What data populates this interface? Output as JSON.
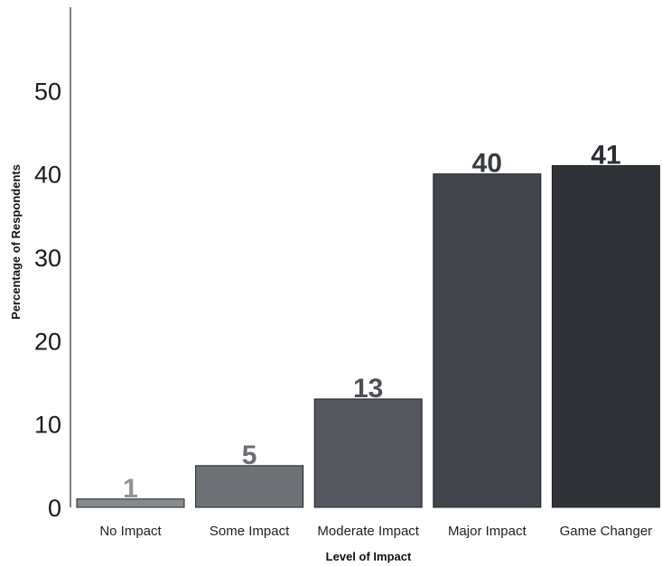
{
  "chart_data": {
    "type": "bar",
    "categories": [
      "No Impact",
      "Some Impact",
      "Moderate Impact",
      "Major Impact",
      "Game Changer"
    ],
    "values": [
      1,
      5,
      13,
      40,
      41
    ],
    "data_labels": [
      "1",
      "5",
      "13",
      "40",
      "41"
    ],
    "colors": [
      "#86898d",
      "#6e7175",
      "#54575d",
      "#42454c",
      "#2f3237"
    ],
    "label_colors": [
      "#909396",
      "#6a6d71",
      "#4c4f55",
      "#383b41",
      "#2b2e33"
    ],
    "title": "",
    "xlabel": "Level of Impact",
    "ylabel": "Percentage of Respondents",
    "ylim": [
      0,
      60
    ],
    "yticks": [
      0,
      10,
      20,
      30,
      40,
      50
    ],
    "grid": false,
    "legend": "none"
  }
}
